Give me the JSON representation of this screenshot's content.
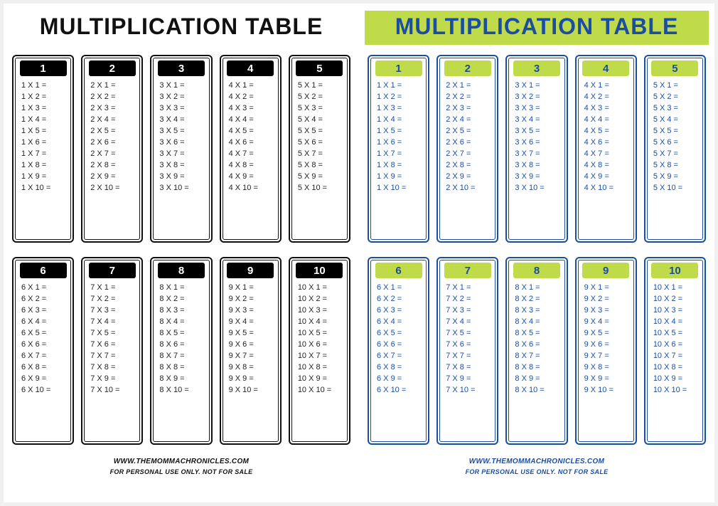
{
  "title": "MULTIPLICATION TABLE",
  "multipliers": [
    1,
    2,
    3,
    4,
    5,
    6,
    7,
    8,
    9,
    10
  ],
  "multiplicands": [
    1,
    2,
    3,
    4,
    5,
    6,
    7,
    8,
    9,
    10
  ],
  "footer_url": "WWW.THEMOMMACHRONICLES.COM",
  "footer_note": "FOR PERSONAL USE ONLY. NOT FOR SALE",
  "themes": [
    {
      "id": "bw",
      "page_bg": "#ffffff",
      "title_bg": "#ffffff",
      "title_color": "#111111",
      "card_border": "#111111",
      "card_header_bg": "#000000",
      "card_header_color": "#ffffff",
      "eq_color": "#222222",
      "footer_color": "#111111"
    },
    {
      "id": "color",
      "page_bg": "#ffffff",
      "title_bg": "#bfdb4a",
      "title_color": "#1b4ea0",
      "card_border": "#1b4ea0",
      "card_header_bg": "#bfdb4a",
      "card_header_color": "#1b4ea0",
      "eq_color": "#1b4ea0",
      "footer_color": "#1b4ea0"
    }
  ]
}
